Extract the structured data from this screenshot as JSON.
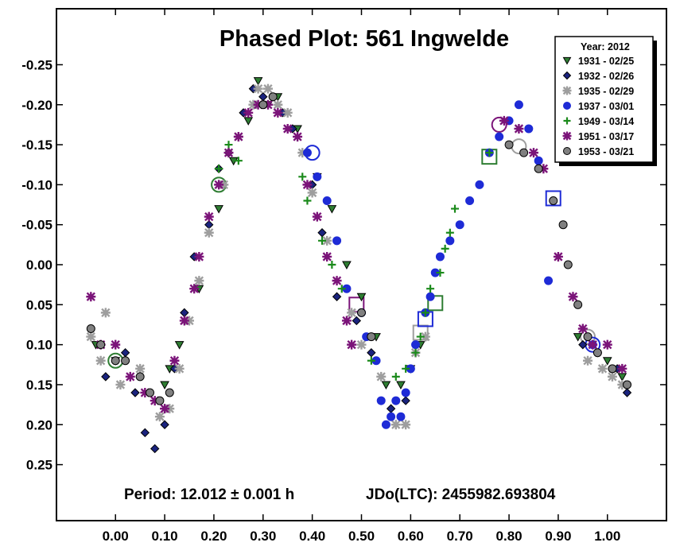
{
  "chart_data": {
    "type": "scatter",
    "title": "Phased Plot: 561 Ingwelde",
    "xlabel": "",
    "ylabel": "",
    "xlim": [
      -0.12,
      1.12
    ],
    "ylim": [
      -0.32,
      0.32
    ],
    "y_inverted": true,
    "x_ticks": [
      "0.00",
      "0.10",
      "0.20",
      "0.30",
      "0.40",
      "0.50",
      "0.60",
      "0.70",
      "0.80",
      "0.90",
      "1.00"
    ],
    "x_tick_values": [
      0,
      0.1,
      0.2,
      0.3,
      0.4,
      0.5,
      0.6,
      0.7,
      0.8,
      0.9,
      1.0
    ],
    "y_ticks": [
      "-0.25",
      "-0.20",
      "-0.15",
      "-0.10",
      "-0.05",
      "0.00",
      "0.05",
      "0.10",
      "0.15",
      "0.20",
      "0.25"
    ],
    "y_tick_values": [
      -0.25,
      -0.2,
      -0.15,
      -0.1,
      -0.05,
      0,
      0.05,
      0.1,
      0.15,
      0.2,
      0.25
    ],
    "annotations": {
      "period": "Period: 12.012 ± 0.001 h",
      "epoch": "JDo(LTC): 2455982.693804"
    },
    "legend": {
      "title": "Year: 2012",
      "placement": "top-right"
    },
    "series": [
      {
        "name": "1931 - 02/25",
        "marker": "triangle-down",
        "color": "#2e7d32",
        "stroke": "#000000",
        "points": [
          [
            -0.04,
            0.1
          ],
          [
            0.0,
            0.12
          ],
          [
            0.1,
            0.15
          ],
          [
            0.11,
            0.13
          ],
          [
            0.13,
            0.1
          ],
          [
            0.17,
            0.03
          ],
          [
            0.21,
            -0.07
          ],
          [
            0.24,
            -0.13
          ],
          [
            0.27,
            -0.18
          ],
          [
            0.29,
            -0.23
          ],
          [
            0.31,
            -0.2
          ],
          [
            0.33,
            -0.21
          ],
          [
            0.37,
            -0.17
          ],
          [
            0.41,
            -0.11
          ],
          [
            0.44,
            -0.07
          ],
          [
            0.47,
            0.0
          ],
          [
            0.5,
            0.04
          ],
          [
            0.53,
            0.09
          ],
          [
            0.55,
            0.15
          ],
          [
            0.58,
            0.15
          ],
          [
            0.6,
            0.13
          ],
          [
            0.62,
            0.1
          ],
          [
            0.94,
            0.09
          ],
          [
            1.0,
            0.12
          ],
          [
            1.03,
            0.14
          ]
        ]
      },
      {
        "name": "1932 - 02/26",
        "marker": "diamond",
        "color": "#1a237e",
        "stroke": "#000000",
        "points": [
          [
            -0.02,
            0.14
          ],
          [
            0.02,
            0.11
          ],
          [
            0.04,
            0.16
          ],
          [
            0.06,
            0.21
          ],
          [
            0.08,
            0.23
          ],
          [
            0.1,
            0.2
          ],
          [
            0.12,
            0.13
          ],
          [
            0.14,
            0.06
          ],
          [
            0.16,
            -0.01
          ],
          [
            0.19,
            -0.05
          ],
          [
            0.21,
            -0.12
          ],
          [
            0.23,
            -0.14
          ],
          [
            0.26,
            -0.19
          ],
          [
            0.28,
            -0.22
          ],
          [
            0.3,
            -0.21
          ],
          [
            0.34,
            -0.19
          ],
          [
            0.36,
            -0.17
          ],
          [
            0.4,
            -0.1
          ],
          [
            0.42,
            -0.04
          ],
          [
            0.45,
            0.04
          ],
          [
            0.49,
            0.07
          ],
          [
            0.52,
            0.11
          ],
          [
            0.56,
            0.18
          ],
          [
            0.59,
            0.17
          ],
          [
            0.95,
            0.1
          ],
          [
            0.98,
            0.11
          ],
          [
            1.02,
            0.13
          ],
          [
            1.04,
            0.16
          ]
        ]
      },
      {
        "name": "1935 - 02/29",
        "marker": "asterisk",
        "color": "#9e9e9e",
        "stroke": "#9e9e9e",
        "points": [
          [
            -0.05,
            0.09
          ],
          [
            -0.03,
            0.12
          ],
          [
            -0.02,
            0.06
          ],
          [
            0.01,
            0.15
          ],
          [
            0.05,
            0.13
          ],
          [
            0.09,
            0.19
          ],
          [
            0.11,
            0.18
          ],
          [
            0.13,
            0.13
          ],
          [
            0.15,
            0.07
          ],
          [
            0.17,
            0.02
          ],
          [
            0.19,
            -0.04
          ],
          [
            0.22,
            -0.1
          ],
          [
            0.25,
            -0.16
          ],
          [
            0.28,
            -0.2
          ],
          [
            0.29,
            -0.22
          ],
          [
            0.31,
            -0.22
          ],
          [
            0.33,
            -0.2
          ],
          [
            0.35,
            -0.19
          ],
          [
            0.38,
            -0.14
          ],
          [
            0.4,
            -0.09
          ],
          [
            0.43,
            -0.03
          ],
          [
            0.48,
            0.06
          ],
          [
            0.5,
            0.1
          ],
          [
            0.54,
            0.14
          ],
          [
            0.57,
            0.2
          ],
          [
            0.59,
            0.2
          ],
          [
            0.61,
            0.11
          ],
          [
            0.63,
            0.09
          ],
          [
            0.96,
            0.12
          ],
          [
            0.99,
            0.13
          ],
          [
            1.01,
            0.14
          ],
          [
            1.03,
            0.15
          ]
        ]
      },
      {
        "name": "1937 - 03/01",
        "marker": "circle",
        "color": "#1e2bd6",
        "stroke": "#1e2bd6",
        "points": [
          [
            0.39,
            -0.14
          ],
          [
            0.41,
            -0.11
          ],
          [
            0.43,
            -0.08
          ],
          [
            0.45,
            -0.03
          ],
          [
            0.47,
            0.03
          ],
          [
            0.5,
            0.06
          ],
          [
            0.51,
            0.09
          ],
          [
            0.53,
            0.12
          ],
          [
            0.54,
            0.17
          ],
          [
            0.55,
            0.2
          ],
          [
            0.56,
            0.19
          ],
          [
            0.57,
            0.17
          ],
          [
            0.58,
            0.19
          ],
          [
            0.59,
            0.16
          ],
          [
            0.6,
            0.13
          ],
          [
            0.61,
            0.1
          ],
          [
            0.63,
            0.06
          ],
          [
            0.64,
            0.04
          ],
          [
            0.65,
            0.01
          ],
          [
            0.66,
            -0.01
          ],
          [
            0.68,
            -0.03
          ],
          [
            0.7,
            -0.05
          ],
          [
            0.72,
            -0.08
          ],
          [
            0.74,
            -0.1
          ],
          [
            0.76,
            -0.14
          ],
          [
            0.78,
            -0.16
          ],
          [
            0.8,
            -0.18
          ],
          [
            0.82,
            -0.2
          ],
          [
            0.84,
            -0.17
          ],
          [
            0.86,
            -0.13
          ],
          [
            0.88,
            0.02
          ],
          [
            0.97,
            0.1
          ]
        ]
      },
      {
        "name": "1949 - 03/14",
        "marker": "plus",
        "color": "#1b8a1b",
        "stroke": "#1b8a1b",
        "points": [
          [
            0.21,
            -0.12
          ],
          [
            0.23,
            -0.15
          ],
          [
            0.25,
            -0.13
          ],
          [
            0.38,
            -0.11
          ],
          [
            0.39,
            -0.08
          ],
          [
            0.42,
            -0.03
          ],
          [
            0.44,
            0.0
          ],
          [
            0.46,
            0.03
          ],
          [
            0.52,
            0.12
          ],
          [
            0.57,
            0.14
          ],
          [
            0.59,
            0.13
          ],
          [
            0.61,
            0.11
          ],
          [
            0.62,
            0.09
          ],
          [
            0.63,
            0.06
          ],
          [
            0.64,
            0.03
          ],
          [
            0.66,
            0.01
          ],
          [
            0.67,
            -0.02
          ],
          [
            0.68,
            -0.04
          ],
          [
            0.69,
            -0.07
          ],
          [
            0.76,
            -0.14
          ]
        ]
      },
      {
        "name": "1951 - 03/17",
        "marker": "asterisk",
        "color": "#7b1479",
        "stroke": "#7b1479",
        "points": [
          [
            -0.05,
            0.04
          ],
          [
            -0.03,
            0.1
          ],
          [
            0.0,
            0.1
          ],
          [
            0.03,
            0.14
          ],
          [
            0.06,
            0.16
          ],
          [
            0.08,
            0.17
          ],
          [
            0.1,
            0.18
          ],
          [
            0.12,
            0.12
          ],
          [
            0.14,
            0.07
          ],
          [
            0.16,
            0.03
          ],
          [
            0.17,
            -0.01
          ],
          [
            0.19,
            -0.06
          ],
          [
            0.21,
            -0.1
          ],
          [
            0.23,
            -0.14
          ],
          [
            0.25,
            -0.16
          ],
          [
            0.27,
            -0.19
          ],
          [
            0.29,
            -0.2
          ],
          [
            0.31,
            -0.2
          ],
          [
            0.33,
            -0.19
          ],
          [
            0.35,
            -0.17
          ],
          [
            0.37,
            -0.16
          ],
          [
            0.39,
            -0.1
          ],
          [
            0.41,
            -0.06
          ],
          [
            0.43,
            -0.01
          ],
          [
            0.45,
            0.02
          ],
          [
            0.47,
            0.07
          ],
          [
            0.48,
            0.1
          ],
          [
            0.79,
            -0.18
          ],
          [
            0.82,
            -0.17
          ],
          [
            0.85,
            -0.14
          ],
          [
            0.87,
            -0.12
          ],
          [
            0.9,
            -0.01
          ],
          [
            0.93,
            0.04
          ],
          [
            0.95,
            0.08
          ],
          [
            0.97,
            0.1
          ],
          [
            1.0,
            0.1
          ],
          [
            1.03,
            0.13
          ]
        ]
      },
      {
        "name": "1953 - 03/21",
        "marker": "circle",
        "color": "#808080",
        "stroke": "#000000",
        "points": [
          [
            -0.05,
            0.08
          ],
          [
            -0.03,
            0.1
          ],
          [
            0.0,
            0.12
          ],
          [
            0.02,
            0.12
          ],
          [
            0.05,
            0.14
          ],
          [
            0.07,
            0.16
          ],
          [
            0.09,
            0.17
          ],
          [
            0.11,
            0.16
          ],
          [
            0.3,
            -0.2
          ],
          [
            0.32,
            -0.21
          ],
          [
            0.5,
            0.06
          ],
          [
            0.52,
            0.09
          ],
          [
            0.8,
            -0.15
          ],
          [
            0.83,
            -0.14
          ],
          [
            0.86,
            -0.12
          ],
          [
            0.89,
            -0.08
          ],
          [
            0.91,
            -0.05
          ],
          [
            0.92,
            0.0
          ],
          [
            0.94,
            0.05
          ],
          [
            0.96,
            0.09
          ],
          [
            0.98,
            0.11
          ],
          [
            1.01,
            0.13
          ],
          [
            1.04,
            0.15
          ]
        ]
      }
    ],
    "reference_markers": [
      {
        "x": 0.0,
        "y": 0.12,
        "shape": "circle",
        "color": "#2e7d32"
      },
      {
        "x": 0.21,
        "y": -0.1,
        "shape": "circle",
        "color": "#2e7d32"
      },
      {
        "x": 0.4,
        "y": -0.14,
        "shape": "circle",
        "color": "#1e2bd6"
      },
      {
        "x": 0.49,
        "y": 0.05,
        "shape": "square",
        "color": "#7b1479"
      },
      {
        "x": 0.62,
        "y": 0.085,
        "shape": "square",
        "color": "#9e9e9e"
      },
      {
        "x": 0.63,
        "y": 0.068,
        "shape": "square",
        "color": "#1e2bd6"
      },
      {
        "x": 0.65,
        "y": 0.048,
        "shape": "square",
        "color": "#2e7d32"
      },
      {
        "x": 0.76,
        "y": -0.135,
        "shape": "square",
        "color": "#2e7d32"
      },
      {
        "x": 0.78,
        "y": -0.175,
        "shape": "circle",
        "color": "#7b1479"
      },
      {
        "x": 0.82,
        "y": -0.148,
        "shape": "circle",
        "color": "#9e9e9e"
      },
      {
        "x": 0.89,
        "y": -0.083,
        "shape": "square",
        "color": "#1e2bd6"
      },
      {
        "x": 0.96,
        "y": 0.09,
        "shape": "circle",
        "color": "#9e9e9e"
      },
      {
        "x": 0.97,
        "y": 0.1,
        "shape": "circle",
        "color": "#1e2bd6"
      }
    ],
    "grid": false
  }
}
